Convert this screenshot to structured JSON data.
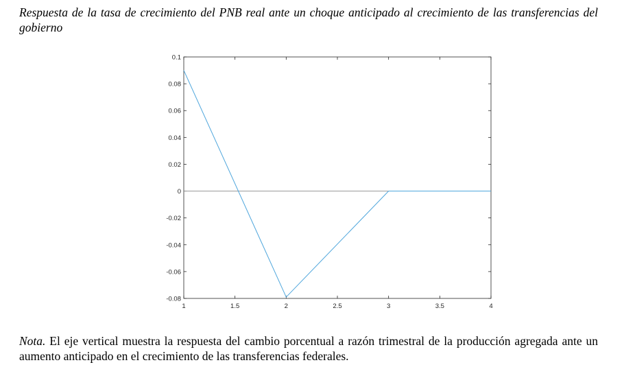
{
  "title": "Respuesta de la tasa de crecimiento del PNB real ante un choque anticipado al crecimiento de las transferencias del gobierno",
  "note": {
    "label": "Nota.",
    "text": " El eje vertical muestra la respuesta del cambio porcentual a razón trimestral de la producción agregada ante un aumento anticipado en el crecimiento de las transferencias federales."
  },
  "chart_data": {
    "type": "line",
    "x": [
      1,
      2,
      3,
      4
    ],
    "series": [
      {
        "values": [
          0.09,
          -0.079,
          0,
          0
        ],
        "color": "#4fa6dc"
      }
    ],
    "xlim": [
      1,
      4
    ],
    "ylim": [
      -0.08,
      0.1
    ],
    "xticks": [
      "1",
      "1.5",
      "2",
      "2.5",
      "3",
      "3.5",
      "4"
    ],
    "yticks": [
      "0.1",
      "0.08",
      "0.06",
      "0.04",
      "0.02",
      "0",
      "-0.02",
      "-0.04",
      "-0.06",
      "-0.08"
    ],
    "reference_line_y": 0,
    "reference_color": "#8c8c8c",
    "grid": false
  }
}
